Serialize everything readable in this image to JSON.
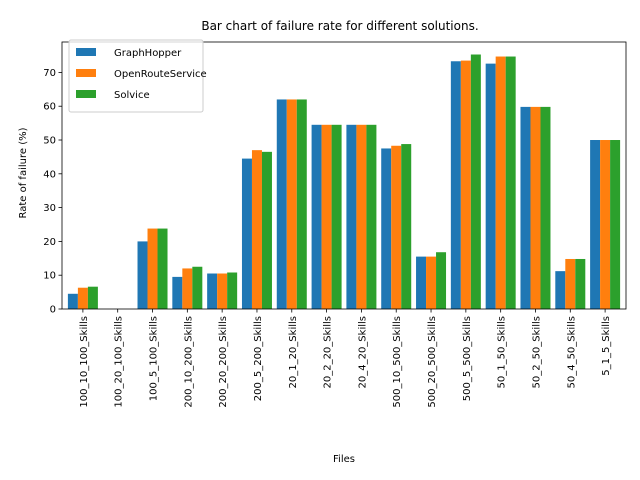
{
  "chart_data": {
    "type": "bar",
    "title": "Bar chart of failure rate for different solutions.",
    "xlabel": "Files",
    "ylabel": "Rate of failure (%)",
    "ylim": [
      0,
      79
    ],
    "yticks": [
      0,
      10,
      20,
      30,
      40,
      50,
      60,
      70
    ],
    "grid": false,
    "legend_position": "top-left",
    "categories": [
      "100_10_100_Skills",
      "100_20_100_Skills",
      "100_5_100_Skills",
      "200_10_200_Skills",
      "200_20_200_Skills",
      "200_5_200_Skills",
      "20_1_20_Skills",
      "20_2_20_Skills",
      "20_4_20_Skills",
      "500_10_500_Skills",
      "500_20_500_Skills",
      "500_5_500_Skills",
      "50_1_50_Skills",
      "50_2_50_Skills",
      "50_4_50_Skills",
      "5_1_5_Skills"
    ],
    "series": [
      {
        "name": "GraphHopper",
        "color": "#1f77b4",
        "values": [
          4.5,
          0,
          20,
          9.5,
          10.5,
          44.5,
          62,
          54.5,
          54.5,
          47.5,
          15.5,
          73.3,
          72.6,
          59.8,
          11.2,
          50
        ]
      },
      {
        "name": "OpenRouteService",
        "color": "#ff7f0e",
        "values": [
          6.3,
          0,
          23.8,
          12,
          10.5,
          47,
          62,
          54.5,
          54.5,
          48.3,
          15.5,
          73.5,
          74.7,
          59.8,
          14.8,
          50
        ]
      },
      {
        "name": "Solvice",
        "color": "#2ca02c",
        "values": [
          6.6,
          0,
          23.8,
          12.5,
          10.8,
          46.5,
          62,
          54.5,
          54.5,
          48.8,
          16.8,
          75.3,
          74.7,
          59.8,
          14.8,
          50
        ]
      }
    ]
  }
}
